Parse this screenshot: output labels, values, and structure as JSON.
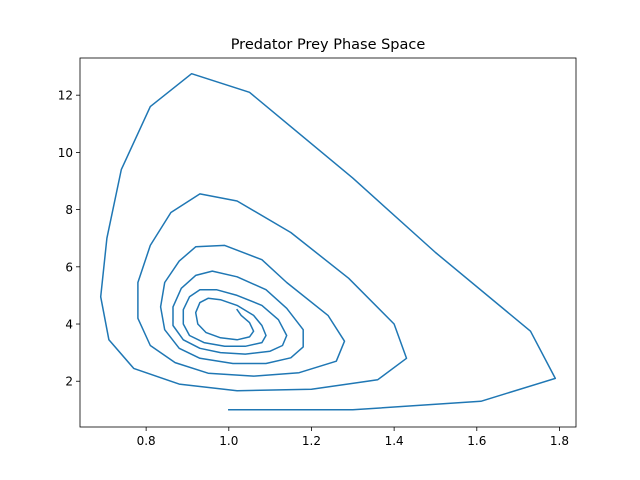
{
  "chart_data": {
    "type": "line",
    "title": "Predator Prey Phase Space",
    "xlabel": "",
    "ylabel": "",
    "xlim": [
      0.64,
      1.84
    ],
    "ylim": [
      0.4,
      13.3
    ],
    "xticks": [
      0.8,
      1.0,
      1.2,
      1.4,
      1.6,
      1.8
    ],
    "yticks": [
      2,
      4,
      6,
      8,
      10,
      12
    ],
    "xtick_labels": [
      "0.8",
      "1.0",
      "1.2",
      "1.4",
      "1.6",
      "1.8"
    ],
    "ytick_labels": [
      "2",
      "4",
      "6",
      "8",
      "10",
      "12"
    ],
    "grid": false,
    "series": [
      {
        "color": "#1f77b4",
        "points": [
          [
            1.0,
            1.0
          ],
          [
            1.3,
            1.0
          ],
          [
            1.61,
            1.3
          ],
          [
            1.79,
            2.1
          ],
          [
            1.73,
            3.75
          ],
          [
            1.5,
            6.5
          ],
          [
            1.3,
            9.1
          ],
          [
            1.05,
            12.1
          ],
          [
            0.91,
            12.75
          ],
          [
            0.81,
            11.6
          ],
          [
            0.74,
            9.4
          ],
          [
            0.705,
            7.0
          ],
          [
            0.69,
            4.95
          ],
          [
            0.71,
            3.45
          ],
          [
            0.77,
            2.45
          ],
          [
            0.88,
            1.9
          ],
          [
            1.02,
            1.67
          ],
          [
            1.2,
            1.72
          ],
          [
            1.36,
            2.05
          ],
          [
            1.43,
            2.8
          ],
          [
            1.4,
            4.0
          ],
          [
            1.29,
            5.6
          ],
          [
            1.15,
            7.2
          ],
          [
            1.02,
            8.3
          ],
          [
            0.93,
            8.55
          ],
          [
            0.86,
            7.9
          ],
          [
            0.81,
            6.75
          ],
          [
            0.78,
            5.45
          ],
          [
            0.78,
            4.2
          ],
          [
            0.81,
            3.25
          ],
          [
            0.87,
            2.65
          ],
          [
            0.95,
            2.28
          ],
          [
            1.06,
            2.18
          ],
          [
            1.17,
            2.3
          ],
          [
            1.26,
            2.7
          ],
          [
            1.28,
            3.4
          ],
          [
            1.24,
            4.3
          ],
          [
            1.14,
            5.45
          ],
          [
            1.08,
            6.25
          ],
          [
            0.99,
            6.75
          ],
          [
            0.92,
            6.7
          ],
          [
            0.88,
            6.2
          ],
          [
            0.845,
            5.45
          ],
          [
            0.835,
            4.6
          ],
          [
            0.845,
            3.8
          ],
          [
            0.88,
            3.15
          ],
          [
            0.93,
            2.8
          ],
          [
            1.01,
            2.62
          ],
          [
            1.09,
            2.62
          ],
          [
            1.15,
            2.82
          ],
          [
            1.18,
            3.2
          ],
          [
            1.18,
            3.8
          ],
          [
            1.14,
            4.55
          ],
          [
            1.09,
            5.2
          ],
          [
            1.02,
            5.65
          ],
          [
            0.96,
            5.85
          ],
          [
            0.92,
            5.7
          ],
          [
            0.885,
            5.25
          ],
          [
            0.865,
            4.6
          ],
          [
            0.865,
            3.95
          ],
          [
            0.89,
            3.45
          ],
          [
            0.93,
            3.15
          ],
          [
            0.98,
            3.0
          ],
          [
            1.04,
            2.95
          ],
          [
            1.1,
            3.05
          ],
          [
            1.13,
            3.25
          ],
          [
            1.14,
            3.6
          ],
          [
            1.12,
            4.15
          ],
          [
            1.08,
            4.65
          ],
          [
            1.02,
            5.0
          ],
          [
            0.97,
            5.2
          ],
          [
            0.93,
            5.2
          ],
          [
            0.905,
            4.95
          ],
          [
            0.89,
            4.5
          ],
          [
            0.89,
            4.0
          ],
          [
            0.905,
            3.6
          ],
          [
            0.94,
            3.35
          ],
          [
            0.99,
            3.22
          ],
          [
            1.04,
            3.22
          ],
          [
            1.08,
            3.35
          ],
          [
            1.09,
            3.6
          ],
          [
            1.08,
            3.95
          ],
          [
            1.06,
            4.3
          ],
          [
            1.02,
            4.65
          ],
          [
            0.98,
            4.85
          ],
          [
            0.95,
            4.9
          ],
          [
            0.93,
            4.75
          ],
          [
            0.92,
            4.4
          ],
          [
            0.925,
            4.0
          ],
          [
            0.945,
            3.7
          ],
          [
            0.98,
            3.52
          ],
          [
            1.02,
            3.45
          ],
          [
            1.05,
            3.55
          ],
          [
            1.06,
            3.75
          ],
          [
            1.05,
            4.05
          ],
          [
            1.03,
            4.3
          ],
          [
            1.02,
            4.5
          ]
        ]
      }
    ]
  }
}
